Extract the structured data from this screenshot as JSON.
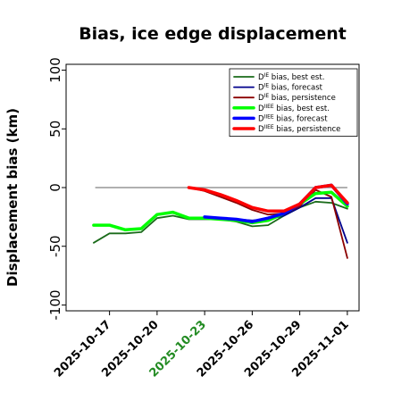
{
  "chart_data": {
    "type": "line",
    "title": "Bias, ice edge displacement",
    "ylabel": "Displacement bias (km)",
    "xlabel": "",
    "ylim": [
      -105,
      105
    ],
    "xlim": [
      "2025-10-15",
      "2025-11-01"
    ],
    "yticks": [
      100,
      50,
      0,
      -50,
      -100
    ],
    "xticks": [
      {
        "date": "2025-10-17",
        "label": "2025-10-17",
        "color": "#000000"
      },
      {
        "date": "2025-10-20",
        "label": "2025-10-20",
        "color": "#000000"
      },
      {
        "date": "2025-10-23",
        "label": "2025-10-23",
        "color": "#228b22"
      },
      {
        "date": "2025-10-26",
        "label": "2025-10-26",
        "color": "#000000"
      },
      {
        "date": "2025-10-29",
        "label": "2025-10-29",
        "color": "#000000"
      },
      {
        "date": "2025-11-01",
        "label": "2025-11-01",
        "color": "#000000"
      }
    ],
    "zero_line": {
      "y": 0,
      "color": "#808080"
    },
    "grid": false,
    "legend_position": "top-right",
    "series": [
      {
        "name": "D^IE bias, best est.",
        "name_base": "D",
        "name_sup": "IE",
        "name_rest": " bias, best est.",
        "color": "#1a6b1a",
        "width": 1.8,
        "x": [
          "2025-10-16",
          "2025-10-17",
          "2025-10-18",
          "2025-10-19",
          "2025-10-20",
          "2025-10-21",
          "2025-10-22",
          "2025-10-23",
          "2025-10-24",
          "2025-10-25",
          "2025-10-26",
          "2025-10-27",
          "2025-10-28",
          "2025-10-29",
          "2025-10-30",
          "2025-10-31",
          "2025-11-01"
        ],
        "values": [
          -47,
          -39,
          -39,
          -38,
          -26,
          -24,
          -27,
          -27,
          -27,
          -29,
          -33,
          -32,
          -24,
          -17,
          -12,
          -13,
          -18
        ]
      },
      {
        "name": "D^IE bias, forecast",
        "name_base": "D",
        "name_sup": "IE",
        "name_rest": " bias, forecast",
        "color": "#00008b",
        "width": 1.8,
        "x": [
          "2025-10-23",
          "2025-10-24",
          "2025-10-25",
          "2025-10-26",
          "2025-10-27",
          "2025-10-28",
          "2025-10-29",
          "2025-10-30",
          "2025-10-31",
          "2025-11-01"
        ],
        "values": [
          -25,
          -26,
          -27,
          -28,
          -27,
          -24,
          -17,
          -9,
          -9,
          -47
        ]
      },
      {
        "name": "D^IE bias, persistence",
        "name_base": "D",
        "name_sup": "IE",
        "name_rest": " bias, persistence",
        "color": "#8b0000",
        "width": 1.8,
        "x": [
          "2025-10-22",
          "2025-10-23",
          "2025-10-24",
          "2025-10-25",
          "2025-10-26",
          "2025-10-27",
          "2025-10-28",
          "2025-10-29",
          "2025-10-30",
          "2025-10-31",
          "2025-11-01"
        ],
        "values": [
          0,
          -3,
          -8,
          -13,
          -19,
          -23,
          -22,
          -16,
          -2,
          -8,
          -60
        ]
      },
      {
        "name": "D^IIEE bias, best est.",
        "name_base": "D",
        "name_sup": "IIEE",
        "name_rest": " bias, best est.",
        "color": "#00ff00",
        "width": 3.5,
        "x": [
          "2025-10-16",
          "2025-10-17",
          "2025-10-18",
          "2025-10-19",
          "2025-10-20",
          "2025-10-21",
          "2025-10-22",
          "2025-10-23",
          "2025-10-24",
          "2025-10-25",
          "2025-10-26",
          "2025-10-27",
          "2025-10-28",
          "2025-10-29",
          "2025-10-30",
          "2025-10-31",
          "2025-11-01"
        ],
        "values": [
          -32,
          -32,
          -36,
          -35,
          -23,
          -21,
          -26,
          -26,
          -27,
          -28,
          -30,
          -28,
          -22,
          -14,
          -5,
          -4,
          -16
        ]
      },
      {
        "name": "D^IIEE bias, forecast",
        "name_base": "D",
        "name_sup": "IIEE",
        "name_rest": " bias, forecast",
        "color": "#0000ff",
        "width": 3.5,
        "x": [
          "2025-10-23",
          "2025-10-24",
          "2025-10-25",
          "2025-10-26",
          "2025-10-27",
          "2025-10-28",
          "2025-10-29",
          "2025-10-30",
          "2025-10-31",
          "2025-11-01"
        ],
        "values": [
          -25,
          -26,
          -27,
          -29,
          -26,
          -22,
          -14,
          0,
          2,
          -14
        ]
      },
      {
        "name": "D^IIEE bias, persistence",
        "name_base": "D",
        "name_sup": "IIEE",
        "name_rest": " bias, persistence",
        "color": "#ff0000",
        "width": 3.5,
        "x": [
          "2025-10-22",
          "2025-10-23",
          "2025-10-24",
          "2025-10-25",
          "2025-10-26",
          "2025-10-27",
          "2025-10-28",
          "2025-10-29",
          "2025-10-30",
          "2025-10-31",
          "2025-11-01"
        ],
        "values": [
          0,
          -2,
          -6,
          -11,
          -17,
          -20,
          -20,
          -14,
          0,
          2,
          -13
        ]
      }
    ]
  }
}
